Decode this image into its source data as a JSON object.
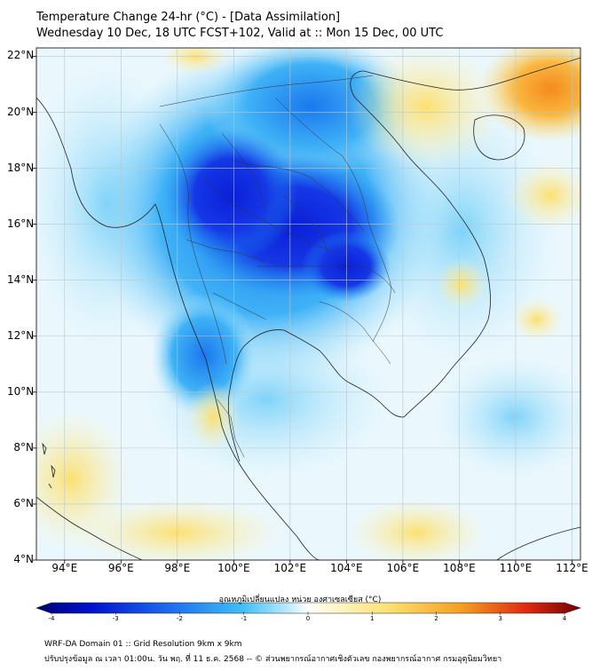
{
  "header": {
    "title": "Temperature Change 24-hr (°C) - [Data Assimilation]",
    "subtitle": "Wednesday 10 Dec, 18 UTC FCST+102, Valid at :: Mon 15 Dec, 00 UTC"
  },
  "map": {
    "lat_labels": [
      "22°N",
      "20°N",
      "18°N",
      "16°N",
      "14°N",
      "12°N",
      "10°N",
      "8°N",
      "6°N",
      "4°N"
    ],
    "lon_labels": [
      "94°E",
      "96°E",
      "98°E",
      "100°E",
      "102°E",
      "104°E",
      "106°E",
      "108°E",
      "110°E",
      "112°E"
    ],
    "lat_range": [
      4,
      22.3
    ],
    "lon_range": [
      93.0,
      112.3
    ],
    "colors": {
      "strong_cooling": "#0a1fd8",
      "cooling": "#1e8cf0",
      "mild_cooling": "#9fe0fa",
      "neutral": "#f0fbff",
      "warming": "#fbe98a",
      "strong_warming": "#f7a02e"
    }
  },
  "colorbar": {
    "title": "อุณหภูมิเปลี่ยนแปลง หน่วย องศาเซลเซียส (°C)",
    "ticks": [
      "-4",
      "-3",
      "-2",
      "-1",
      "0",
      "1",
      "2",
      "3",
      "4"
    ],
    "range": [
      -4,
      4
    ]
  },
  "footer": {
    "line1": "WRF-DA Domain 01 :: Grid Resolution 9km x 9km",
    "line2": "ปรับปรุงข้อมูล ณ เวลา 01:00น. วัน พฤ. ที่ 11 ธ.ค. 2568 -- © ส่วนพยากรณ์อากาศเชิงตัวเลข กองพยากรณ์อากาศ กรมอุตุนิยมวิทยา"
  }
}
